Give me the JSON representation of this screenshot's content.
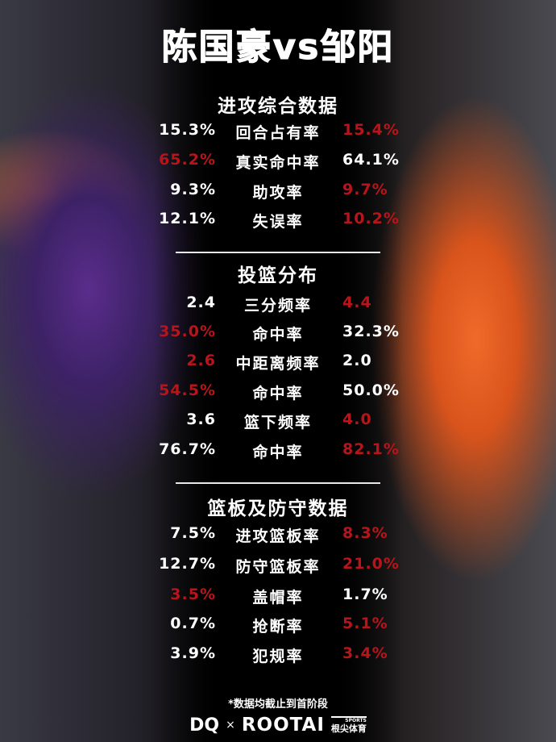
{
  "title": "陈国豪vs邹阳",
  "colors": {
    "highlight": "#b8141a",
    "text": "#ffffff",
    "left_team": "#5a2d8c",
    "right_team": "#f06a2a"
  },
  "sections": [
    {
      "title": "进攻综合数据",
      "rows": [
        {
          "left": "15.3%",
          "label": "回合占有率",
          "right": "15.4%",
          "highlight": "right"
        },
        {
          "left": "65.2%",
          "label": "真实命中率",
          "right": "64.1%",
          "highlight": "left"
        },
        {
          "left": "9.3%",
          "label": "助攻率",
          "right": "9.7%",
          "highlight": "right"
        },
        {
          "left": "12.1%",
          "label": "失误率",
          "right": "10.2%",
          "highlight": "right"
        }
      ]
    },
    {
      "title": "投篮分布",
      "rows": [
        {
          "left": "2.4",
          "label": "三分频率",
          "right": "4.4",
          "highlight": "right"
        },
        {
          "left": "35.0%",
          "label": "命中率",
          "right": "32.3%",
          "highlight": "left"
        },
        {
          "left": "2.6",
          "label": "中距离频率",
          "right": "2.0",
          "highlight": "left"
        },
        {
          "left": "54.5%",
          "label": "命中率",
          "right": "50.0%",
          "highlight": "left"
        },
        {
          "left": "3.6",
          "label": "篮下频率",
          "right": "4.0",
          "highlight": "right"
        },
        {
          "left": "76.7%",
          "label": "命中率",
          "right": "82.1%",
          "highlight": "right"
        }
      ]
    },
    {
      "title": "篮板及防守数据",
      "rows": [
        {
          "left": "7.5%",
          "label": "进攻篮板率",
          "right": "8.3%",
          "highlight": "right"
        },
        {
          "left": "12.7%",
          "label": "防守篮板率",
          "right": "21.0%",
          "highlight": "right"
        },
        {
          "left": "3.5%",
          "label": "盖帽率",
          "right": "1.7%",
          "highlight": "left"
        },
        {
          "left": "0.7%",
          "label": "抢断率",
          "right": "5.1%",
          "highlight": "right"
        },
        {
          "left": "3.9%",
          "label": "犯规率",
          "right": "3.4%",
          "highlight": "right"
        }
      ]
    }
  ],
  "footer": {
    "note": "*数据均截止到首阶段",
    "logo_left": "DQ",
    "times": "×",
    "logo_right": "ROOTAI",
    "logo_right_sub": "根尖体育",
    "logo_right_tag": "SPORTS"
  }
}
